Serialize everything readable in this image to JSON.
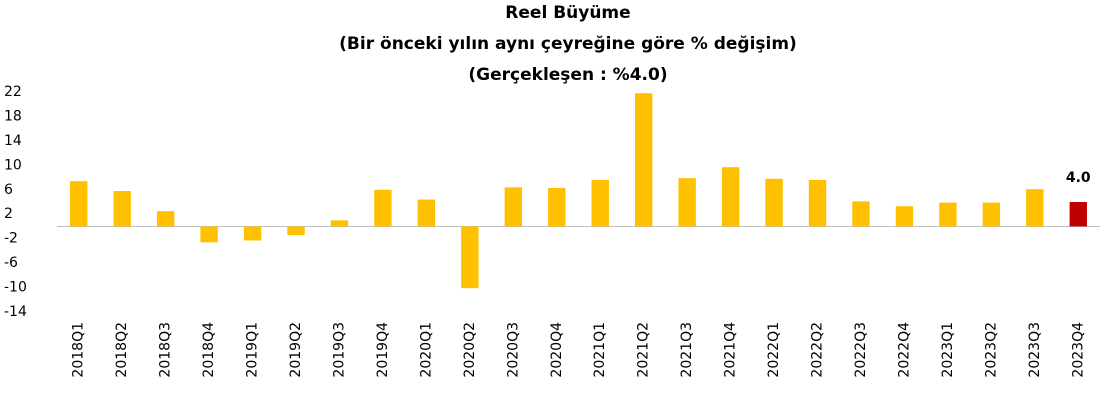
{
  "chart_data": {
    "type": "bar",
    "title": "Reel Büyüme",
    "subtitle": [
      "(Bir önceki yılın aynı çeyreğine göre % değişim)",
      "(Gerçekleşen : %4.0)"
    ],
    "categories": [
      "2018Q1",
      "2018Q2",
      "2018Q3",
      "2018Q4",
      "2019Q1",
      "2019Q2",
      "2019Q3",
      "2019Q4",
      "2020Q1",
      "2020Q2",
      "2020Q3",
      "2020Q4",
      "2021Q1",
      "2021Q2",
      "2021Q3",
      "2021Q4",
      "2022Q1",
      "2022Q2",
      "2022Q3",
      "2022Q4",
      "2023Q1",
      "2023Q2",
      "2023Q3",
      "2023Q4"
    ],
    "values": [
      7.4,
      5.8,
      2.5,
      -2.6,
      -2.3,
      -1.4,
      1.0,
      6.0,
      4.4,
      -10.1,
      6.4,
      6.3,
      7.6,
      21.8,
      7.9,
      9.7,
      7.8,
      7.6,
      4.1,
      3.3,
      3.9,
      3.9,
      6.1,
      4.0
    ],
    "value_labels": [
      null,
      null,
      null,
      null,
      null,
      null,
      null,
      null,
      null,
      null,
      null,
      null,
      null,
      null,
      null,
      null,
      null,
      null,
      null,
      null,
      null,
      null,
      null,
      "4.0"
    ],
    "colors": [
      "#ffc000",
      "#ffc000",
      "#ffc000",
      "#ffc000",
      "#ffc000",
      "#ffc000",
      "#ffc000",
      "#ffc000",
      "#ffc000",
      "#ffc000",
      "#ffc000",
      "#ffc000",
      "#ffc000",
      "#ffc000",
      "#ffc000",
      "#ffc000",
      "#ffc000",
      "#ffc000",
      "#ffc000",
      "#ffc000",
      "#ffc000",
      "#ffc000",
      "#ffc000",
      "#c00000"
    ],
    "ylim": [
      -14,
      22
    ],
    "yticks": [
      22,
      18,
      14,
      10,
      6,
      2,
      -2,
      -6,
      -10,
      -14
    ],
    "grid": false
  }
}
